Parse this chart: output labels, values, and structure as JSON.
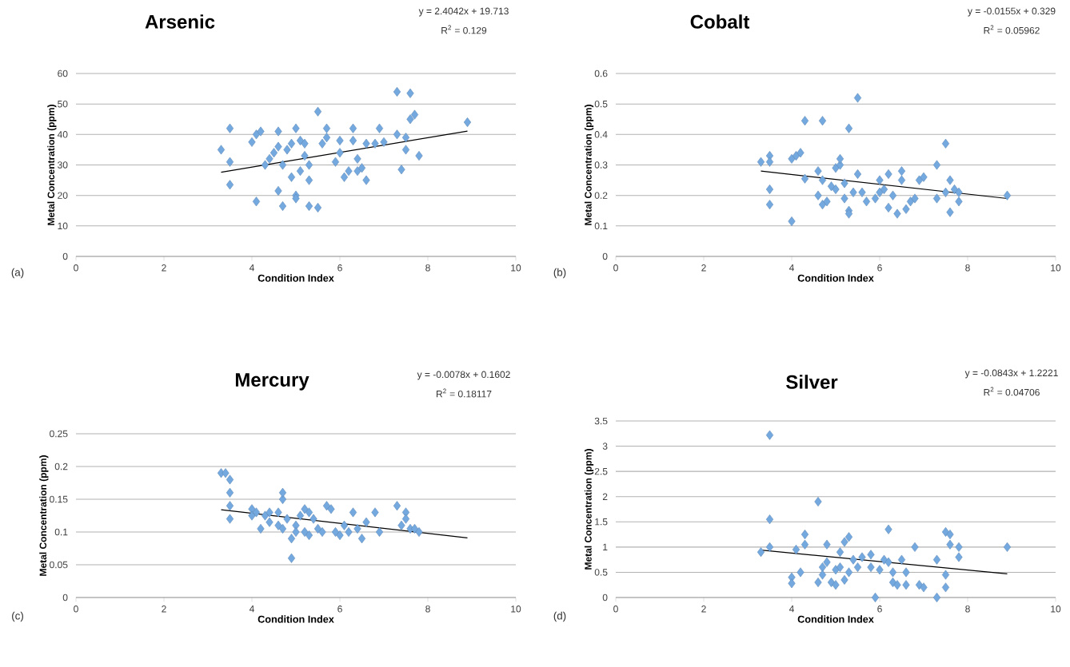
{
  "chart_data": [
    {
      "type": "scatter",
      "title": "Arsenic",
      "xlabel": "Condition Index",
      "ylabel": "Metal Concentration (ppm)",
      "annotations": [
        "y = 2.4042x + 19.713",
        "R$^{2}$ = 0.129",
        "(a)"
      ],
      "xlim": [
        0,
        10
      ],
      "xticks": [
        0,
        2,
        4,
        6,
        8,
        10
      ],
      "ylim": [
        0,
        60
      ],
      "yticks": [
        0,
        10,
        20,
        30,
        40,
        50,
        60
      ],
      "grid": "y",
      "marker": "diamond",
      "series": [
        {
          "color": "#74a9e0",
          "x": [
            3.3,
            3.5,
            3.5,
            3.5,
            4.0,
            4.1,
            4.2,
            4.1,
            4.3,
            4.4,
            4.5,
            4.6,
            4.6,
            4.6,
            4.7,
            4.7,
            4.8,
            4.9,
            4.9,
            5.0,
            5.0,
            5.0,
            5.1,
            5.1,
            5.2,
            5.2,
            5.3,
            5.3,
            5.3,
            5.5,
            5.5,
            5.6,
            5.7,
            5.7,
            5.9,
            6.0,
            6.0,
            6.1,
            6.2,
            6.3,
            6.3,
            6.4,
            6.4,
            6.5,
            6.6,
            6.6,
            6.8,
            6.9,
            7.0,
            7.3,
            7.3,
            7.4,
            7.5,
            7.5,
            7.6,
            7.6,
            7.7,
            7.8,
            8.9
          ],
          "values": [
            35,
            42,
            31,
            23.5,
            37.5,
            40,
            41,
            18,
            30,
            32,
            34,
            36,
            41,
            21.5,
            30,
            16.5,
            35,
            37,
            26,
            42,
            20,
            19,
            28,
            38,
            37,
            33,
            30,
            25,
            16.5,
            16,
            47.5,
            37,
            42,
            39,
            31,
            34,
            38,
            26,
            28,
            42,
            38,
            32,
            28,
            29,
            25,
            37,
            37,
            42,
            37.5,
            54,
            40,
            28.5,
            35,
            39,
            45,
            53.5,
            46.5,
            33,
            44
          ]
        },
        {
          "type": "line",
          "marker": "none",
          "color": "#000000",
          "x": [
            3.3,
            8.9
          ],
          "values": [
            27.6,
            41.1
          ]
        }
      ]
    },
    {
      "type": "scatter",
      "title": "Cobalt",
      "xlabel": "Condition Index",
      "ylabel": "Metal Concentration (ppm)",
      "annotations": [
        "y = -0.0155x + 0.329",
        "R$^{2}$ = 0.05962",
        "(b)"
      ],
      "xlim": [
        0,
        10
      ],
      "xticks": [
        0,
        2,
        4,
        6,
        8,
        10
      ],
      "ylim": [
        0,
        0.6
      ],
      "yticks": [
        0,
        0.1,
        0.2,
        0.3,
        0.4,
        0.5,
        0.6
      ],
      "grid": "y",
      "marker": "diamond",
      "series": [
        {
          "color": "#74a9e0",
          "x": [
            3.3,
            3.5,
            3.5,
            3.5,
            3.5,
            4.0,
            4.0,
            4.1,
            4.2,
            4.3,
            4.3,
            4.6,
            4.6,
            4.7,
            4.7,
            4.7,
            4.8,
            4.9,
            5.0,
            5.0,
            5.1,
            5.1,
            5.2,
            5.2,
            5.3,
            5.3,
            5.3,
            5.4,
            5.5,
            5.5,
            5.6,
            5.7,
            5.9,
            6.0,
            6.0,
            6.1,
            6.2,
            6.2,
            6.3,
            6.4,
            6.5,
            6.5,
            6.6,
            6.7,
            6.8,
            6.9,
            7.0,
            7.3,
            7.3,
            7.5,
            7.5,
            7.6,
            7.6,
            7.7,
            7.8,
            7.8,
            8.9
          ],
          "values": [
            0.31,
            0.33,
            0.31,
            0.22,
            0.17,
            0.115,
            0.32,
            0.33,
            0.34,
            0.255,
            0.445,
            0.2,
            0.28,
            0.25,
            0.17,
            0.445,
            0.18,
            0.23,
            0.22,
            0.29,
            0.3,
            0.32,
            0.19,
            0.24,
            0.15,
            0.42,
            0.14,
            0.21,
            0.52,
            0.27,
            0.21,
            0.18,
            0.19,
            0.25,
            0.21,
            0.22,
            0.27,
            0.16,
            0.2,
            0.14,
            0.28,
            0.25,
            0.155,
            0.18,
            0.19,
            0.25,
            0.26,
            0.3,
            0.19,
            0.21,
            0.37,
            0.25,
            0.145,
            0.22,
            0.21,
            0.18,
            0.2
          ]
        },
        {
          "type": "line",
          "marker": "none",
          "color": "#000000",
          "x": [
            3.3,
            8.9
          ],
          "values": [
            0.28,
            0.19
          ]
        }
      ]
    },
    {
      "type": "scatter",
      "title": "Mercury",
      "xlabel": "Condition Index",
      "ylabel": "Metal Concentration (ppm)",
      "annotations": [
        "y = -0.0078x + 0.1602",
        "R$^{2}$ = 0.18117",
        "(c)"
      ],
      "xlim": [
        0,
        10
      ],
      "xticks": [
        0,
        2,
        4,
        6,
        8,
        10
      ],
      "ylim": [
        0,
        0.25
      ],
      "yticks": [
        0,
        0.05,
        0.1,
        0.15,
        0.2,
        0.25
      ],
      "grid": "y",
      "marker": "diamond",
      "series": [
        {
          "color": "#74a9e0",
          "x": [
            3.3,
            3.4,
            3.5,
            3.5,
            3.5,
            3.5,
            4.0,
            4.0,
            4.1,
            4.2,
            4.3,
            4.4,
            4.4,
            4.6,
            4.6,
            4.7,
            4.7,
            4.7,
            4.8,
            4.9,
            4.9,
            5.0,
            5.0,
            5.1,
            5.2,
            5.2,
            5.3,
            5.3,
            5.4,
            5.5,
            5.6,
            5.7,
            5.8,
            5.9,
            6.0,
            6.1,
            6.2,
            6.3,
            6.4,
            6.5,
            6.6,
            6.8,
            6.9,
            7.3,
            7.4,
            7.5,
            7.5,
            7.6,
            7.7,
            7.8
          ],
          "values": [
            0.19,
            0.19,
            0.18,
            0.16,
            0.14,
            0.12,
            0.135,
            0.125,
            0.13,
            0.105,
            0.125,
            0.13,
            0.115,
            0.11,
            0.13,
            0.15,
            0.16,
            0.105,
            0.12,
            0.09,
            0.06,
            0.11,
            0.1,
            0.125,
            0.135,
            0.1,
            0.13,
            0.095,
            0.12,
            0.105,
            0.1,
            0.14,
            0.135,
            0.1,
            0.095,
            0.11,
            0.1,
            0.13,
            0.105,
            0.09,
            0.115,
            0.13,
            0.1,
            0.14,
            0.11,
            0.13,
            0.12,
            0.105,
            0.105,
            0.1
          ]
        },
        {
          "type": "line",
          "marker": "none",
          "color": "#000000",
          "x": [
            3.3,
            8.9
          ],
          "values": [
            0.134,
            0.091
          ]
        }
      ]
    },
    {
      "type": "scatter",
      "title": "Silver",
      "xlabel": "Condition Index",
      "ylabel": "Metal Concentration (ppm)",
      "annotations": [
        "y = -0.0843x + 1.2221",
        "R$^{2}$ = 0.04706",
        "(d)"
      ],
      "xlim": [
        0,
        10
      ],
      "xticks": [
        0,
        2,
        4,
        6,
        8,
        10
      ],
      "ylim": [
        0,
        3.5
      ],
      "yticks": [
        0,
        0.5,
        1,
        1.5,
        2,
        2.5,
        3,
        3.5
      ],
      "grid": "y",
      "marker": "diamond",
      "series": [
        {
          "color": "#74a9e0",
          "x": [
            3.3,
            3.5,
            3.5,
            3.5,
            4.0,
            4.0,
            4.1,
            4.2,
            4.3,
            4.3,
            4.6,
            4.6,
            4.7,
            4.7,
            4.8,
            4.8,
            4.9,
            5.0,
            5.0,
            5.1,
            5.1,
            5.2,
            5.2,
            5.3,
            5.3,
            5.4,
            5.5,
            5.6,
            5.8,
            5.8,
            5.9,
            6.0,
            6.1,
            6.2,
            6.2,
            6.3,
            6.3,
            6.4,
            6.5,
            6.6,
            6.6,
            6.8,
            6.9,
            7.0,
            7.3,
            7.3,
            7.5,
            7.5,
            7.5,
            7.6,
            7.6,
            7.8,
            7.8,
            8.9
          ],
          "values": [
            0.9,
            3.22,
            1.55,
            1.0,
            0.4,
            0.28,
            0.95,
            0.5,
            1.25,
            1.05,
            1.9,
            0.3,
            0.6,
            0.45,
            1.05,
            0.7,
            0.3,
            0.25,
            0.55,
            0.9,
            0.6,
            1.1,
            0.35,
            1.2,
            0.5,
            0.75,
            0.6,
            0.8,
            0.85,
            0.6,
            0.0,
            0.55,
            0.75,
            1.35,
            0.7,
            0.5,
            0.3,
            0.25,
            0.75,
            0.5,
            0.25,
            1.0,
            0.25,
            0.2,
            0.75,
            0.0,
            0.2,
            0.45,
            1.3,
            1.25,
            1.05,
            1.0,
            0.8,
            1.0
          ]
        },
        {
          "type": "line",
          "marker": "none",
          "color": "#000000",
          "x": [
            3.3,
            8.9
          ],
          "values": [
            0.94,
            0.47
          ]
        }
      ]
    }
  ]
}
